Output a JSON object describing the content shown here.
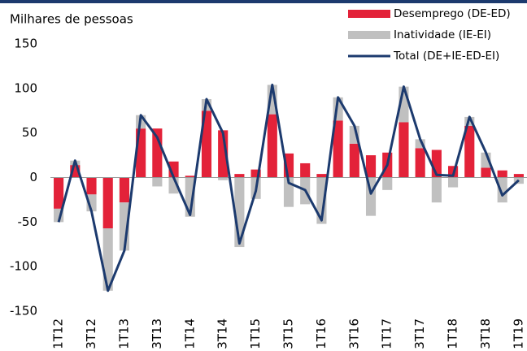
{
  "chart_data": {
    "type": "bar",
    "stacked": true,
    "title": "Milhares de pessoas",
    "categories": [
      "1T12",
      null,
      "3T12",
      null,
      "1T13",
      null,
      "3T13",
      null,
      "1T14",
      null,
      "3T14",
      null,
      "1T15",
      null,
      "3T15",
      null,
      "1T16",
      null,
      "3T16",
      null,
      "1T17",
      null,
      "3T17",
      null,
      "1T18",
      null,
      "3T18",
      null,
      "1T19"
    ],
    "series": [
      {
        "name": "Desemprego (DE-ED)",
        "color": "#e32239",
        "type": "bar",
        "values": [
          -35,
          14,
          -19,
          -57,
          -28,
          55,
          55,
          18,
          2,
          75,
          53,
          4,
          9,
          71,
          27,
          16,
          4,
          64,
          38,
          25,
          28,
          62,
          33,
          31,
          13,
          58,
          11,
          8,
          4
        ]
      },
      {
        "name": "Inatividade (IE-EI)",
        "color": "#c0c0c0",
        "type": "bar",
        "values": [
          -15,
          5,
          -19,
          -70,
          -54,
          15,
          -10,
          -18,
          -44,
          13,
          -3,
          -78,
          -24,
          33,
          -33,
          -30,
          -52,
          26,
          20,
          -43,
          -14,
          40,
          10,
          -28,
          -11,
          10,
          17,
          -28,
          -7
        ]
      },
      {
        "name": "Total (DE+IE-ED-EI)",
        "color": "#1c3a6e",
        "type": "line",
        "values": [
          -50,
          19,
          -38,
          -127,
          -82,
          70,
          45,
          0,
          -42,
          88,
          50,
          -74,
          -15,
          104,
          -6,
          -14,
          -48,
          90,
          58,
          -18,
          14,
          102,
          43,
          3,
          2,
          68,
          28,
          -20,
          -3
        ]
      }
    ],
    "ylim": [
      -150,
      150
    ],
    "yticks": [
      -150,
      -100,
      -50,
      0,
      50,
      100,
      150
    ],
    "grid": false
  }
}
